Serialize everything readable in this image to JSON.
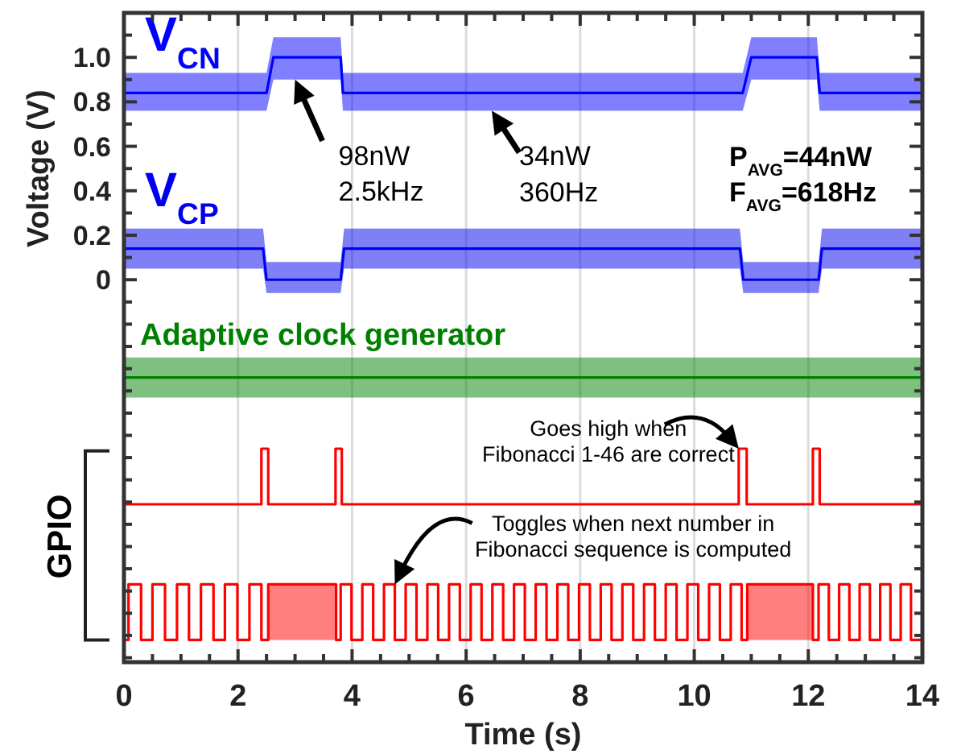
{
  "chart_data": {
    "type": "line",
    "xlabel": "Time (s)",
    "ylabel": "Voltage (V)",
    "xlim": [
      0,
      14
    ],
    "ylim": [
      -1.72,
      1.2
    ],
    "xticks": [
      0,
      {
        "value": 0.5,
        "label": null
      },
      {
        "value": 1,
        "label": null
      },
      {
        "value": 1.5,
        "label": null
      },
      2,
      {
        "value": 2.5,
        "label": null
      },
      {
        "value": 3,
        "label": null
      },
      {
        "value": 3.5,
        "label": null
      },
      4,
      {
        "value": 4.5,
        "label": null
      },
      {
        "value": 5,
        "label": null
      },
      {
        "value": 5.5,
        "label": null
      },
      6,
      {
        "value": 6.5,
        "label": null
      },
      {
        "value": 7,
        "label": null
      },
      {
        "value": 7.5,
        "label": null
      },
      8,
      {
        "value": 8.5,
        "label": null
      },
      {
        "value": 9,
        "label": null
      },
      {
        "value": 9.5,
        "label": null
      },
      10,
      {
        "value": 10.5,
        "label": null
      },
      {
        "value": 11,
        "label": null
      },
      {
        "value": 11.5,
        "label": null
      },
      12,
      {
        "value": 12.5,
        "label": null
      },
      {
        "value": 13,
        "label": null
      },
      {
        "value": 13.5,
        "label": null
      },
      14
    ],
    "yticks": [
      {
        "value": -1.7,
        "label": null
      },
      {
        "value": -1.6,
        "label": null
      },
      {
        "value": -1.5,
        "label": null
      },
      {
        "value": -1.4,
        "label": null
      },
      {
        "value": -1.3,
        "label": null
      },
      {
        "value": -1.2,
        "label": null
      },
      {
        "value": -1.1,
        "label": null
      },
      {
        "value": -1,
        "label": null
      },
      {
        "value": -0.9,
        "label": null
      },
      {
        "value": -0.8,
        "label": null
      },
      {
        "value": -0.7,
        "label": null
      },
      {
        "value": -0.6,
        "label": null
      },
      {
        "value": -0.5,
        "label": null
      },
      {
        "value": -0.4,
        "label": null
      },
      {
        "value": -0.3,
        "label": null
      },
      {
        "value": -0.2,
        "label": null
      },
      {
        "value": -0.1,
        "label": null
      },
      0,
      {
        "value": 0.1,
        "label": null
      },
      0.2,
      {
        "value": 0.3,
        "label": null
      },
      0.4,
      {
        "value": 0.5,
        "label": null
      },
      0.6,
      {
        "value": 0.7,
        "label": null
      },
      0.8,
      {
        "value": 0.9,
        "label": null
      },
      {
        "value": 1,
        "label": "1.0"
      },
      {
        "value": 1.1,
        "label": null
      }
    ],
    "grid": "x",
    "series": [
      {
        "name": "V$_{CN}$",
        "color": "#0000ff",
        "x": [
          0,
          2.5,
          2.62,
          3.8,
          3.84,
          10.85,
          11.0,
          12.15,
          12.2,
          14
        ],
        "values": [
          0.84,
          0.84,
          1.0,
          1.0,
          0.84,
          0.84,
          1.0,
          1.0,
          0.84,
          0.84
        ],
        "lower": [
          0.76,
          0.76,
          0.9,
          0.9,
          0.76,
          0.76,
          0.9,
          0.9,
          0.76,
          0.76
        ],
        "upper": [
          0.93,
          0.93,
          1.09,
          1.09,
          0.93,
          0.93,
          1.09,
          1.09,
          0.93,
          0.93
        ]
      },
      {
        "name": "V$_{CP}$",
        "color": "#0000ee",
        "x": [
          0,
          2.44,
          2.5,
          3.8,
          3.86,
          10.8,
          10.86,
          12.18,
          12.24,
          14
        ],
        "values": [
          0.14,
          0.14,
          0,
          0,
          0.14,
          0.14,
          0,
          0,
          0.14,
          0.14
        ],
        "lower": [
          0.05,
          0.05,
          -0.06,
          -0.06,
          0.05,
          0.05,
          -0.06,
          -0.06,
          0.05,
          0.05
        ],
        "upper": [
          0.23,
          0.23,
          0.08,
          0.08,
          0.23,
          0.23,
          0.08,
          0.08,
          0.23,
          0.23
        ]
      },
      {
        "name": "Adaptive clock generator",
        "color": "#008000",
        "x": [
          0,
          14
        ],
        "values": [
          -0.44,
          -0.44
        ],
        "lower": [
          -0.53,
          -0.53
        ],
        "upper": [
          -0.35,
          -0.35
        ]
      },
      {
        "type": "step",
        "color": "#ff0000",
        "x": [
          0,
          2.41,
          2.53,
          3.71,
          3.82,
          10.78,
          10.92,
          12.08,
          12.2,
          14
        ],
        "values": [
          -1.01,
          -0.76,
          -1.01,
          -0.76,
          -1.01,
          -0.76,
          -1.01,
          -0.76,
          -1.01,
          -1.01
        ]
      },
      {
        "type": "step",
        "color": "#ff0000",
        "x": [
          0,
          0.08,
          0.3,
          0.5,
          0.72,
          0.93,
          1.14,
          1.35,
          1.57,
          1.77,
          1.99,
          2.2,
          2.41,
          2.53,
          3.72,
          3.8,
          3.99,
          4.18,
          4.37,
          4.56,
          4.75,
          4.94,
          5.13,
          5.32,
          5.51,
          5.7,
          5.89,
          6.08,
          6.27,
          6.46,
          6.65,
          6.84,
          7.03,
          7.22,
          7.41,
          7.6,
          7.79,
          7.98,
          8.17,
          8.36,
          8.55,
          8.74,
          8.93,
          9.12,
          9.31,
          9.5,
          9.69,
          9.88,
          10.07,
          10.26,
          10.45,
          10.64,
          10.83,
          10.93,
          12.08,
          12.18,
          12.36,
          12.54,
          12.72,
          12.9,
          13.08,
          13.26,
          13.44,
          13.62,
          13.8,
          14
        ],
        "values": [
          -1.62,
          -1.37,
          -1.62,
          -1.37,
          -1.62,
          -1.37,
          -1.62,
          -1.37,
          -1.62,
          -1.37,
          -1.62,
          -1.37,
          -1.62,
          -1.37,
          -1.62,
          -1.37,
          -1.62,
          -1.37,
          -1.62,
          -1.37,
          -1.62,
          -1.37,
          -1.62,
          -1.37,
          -1.62,
          -1.37,
          -1.62,
          -1.37,
          -1.62,
          -1.37,
          -1.62,
          -1.37,
          -1.62,
          -1.37,
          -1.62,
          -1.37,
          -1.62,
          -1.37,
          -1.62,
          -1.37,
          -1.62,
          -1.37,
          -1.62,
          -1.37,
          -1.62,
          -1.37,
          -1.62,
          -1.37,
          -1.62,
          -1.37,
          -1.62,
          -1.37,
          -1.62,
          -1.37,
          -1.62,
          -1.37,
          -1.62,
          -1.37,
          -1.62,
          -1.37,
          -1.62,
          -1.37,
          -1.62,
          -1.37,
          -1.62,
          -1.62
        ],
        "lower": [
          null,
          null,
          null,
          null,
          null,
          null,
          null,
          null,
          null,
          null,
          null,
          null,
          null,
          -1.62,
          -1.62,
          null,
          null,
          null,
          null,
          null,
          null,
          null,
          null,
          null,
          null,
          null,
          null,
          null,
          null,
          null,
          null,
          null,
          null,
          null,
          null,
          null,
          null,
          null,
          null,
          null,
          null,
          null,
          null,
          null,
          null,
          null,
          null,
          null,
          null,
          null,
          null,
          null,
          null,
          -1.62,
          -1.62,
          null,
          null,
          null,
          null,
          null,
          null,
          null,
          null,
          null,
          null,
          null
        ],
        "upper": [
          null,
          null,
          null,
          null,
          null,
          null,
          null,
          null,
          null,
          null,
          null,
          null,
          null,
          -1.37,
          -1.37,
          null,
          null,
          null,
          null,
          null,
          null,
          null,
          null,
          null,
          null,
          null,
          null,
          null,
          null,
          null,
          null,
          null,
          null,
          null,
          null,
          null,
          null,
          null,
          null,
          null,
          null,
          null,
          null,
          null,
          null,
          null,
          null,
          null,
          null,
          null,
          null,
          null,
          null,
          -1.37,
          -1.37,
          null,
          null,
          null,
          null,
          null,
          null,
          null,
          null,
          null,
          null,
          null
        ]
      }
    ],
    "annotations": [
      {
        "text": "98nW\n2.5kHz",
        "x": 3.0,
        "y": 0.9
      },
      {
        "text": "34nW\n360Hz",
        "x": 6.45,
        "y": 0.76
      },
      "P$_{AVG}$=44nW",
      "F$_{AVG}$=618Hz",
      {
        "text": "Goes high when\nFibonacci 1-46 are correct",
        "x": 10.78,
        "y": -0.76
      },
      {
        "text": "Toggles when next number in\nFibonacci sequence is computed",
        "x": 4.75,
        "y": -1.37
      },
      "GPIO"
    ]
  }
}
